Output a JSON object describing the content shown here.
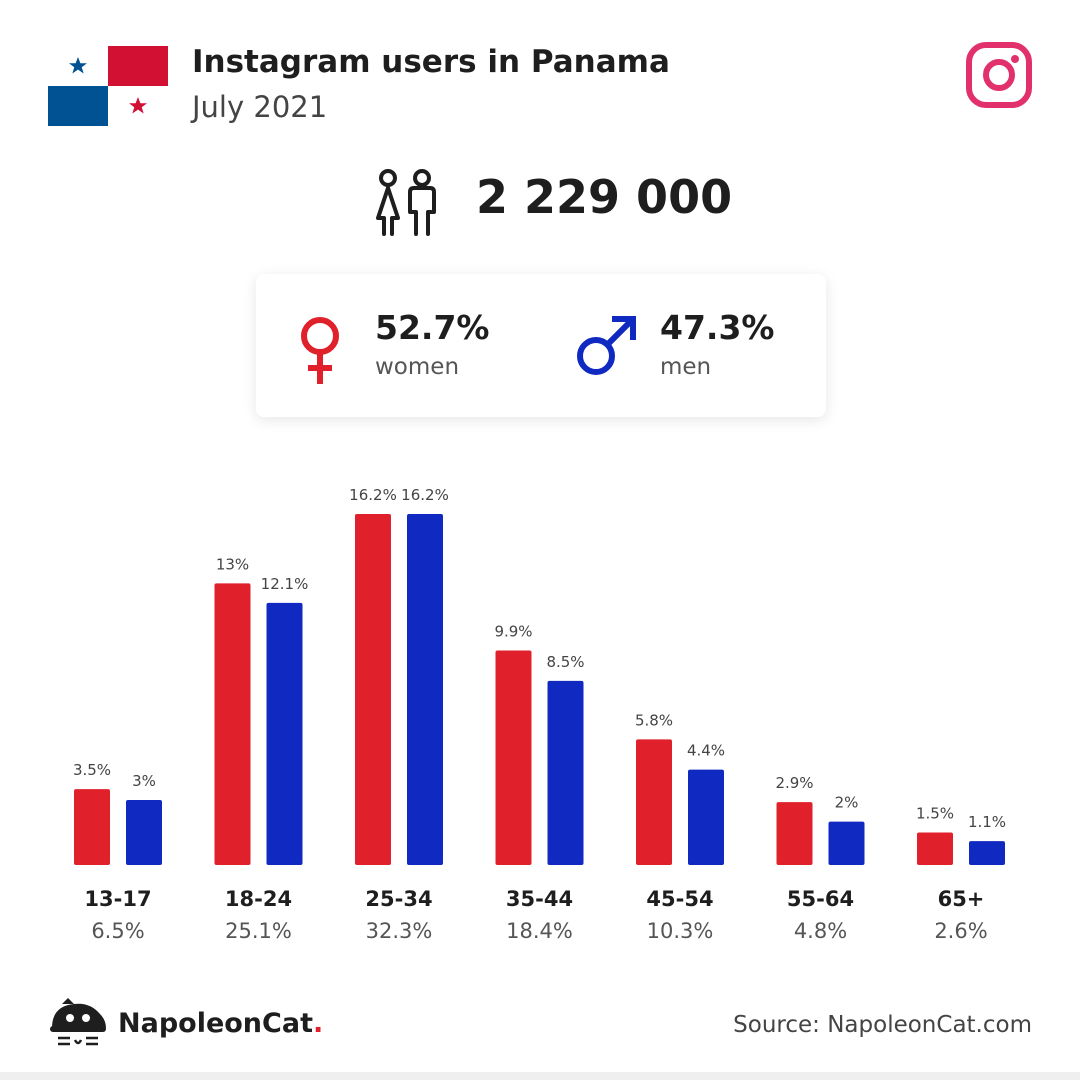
{
  "header": {
    "title": "Instagram users in Panama",
    "subtitle": "July 2021"
  },
  "total_users": "2 229 000",
  "gender": {
    "women": {
      "value": "52.7%",
      "label": "women"
    },
    "men": {
      "value": "47.3%",
      "label": "men"
    }
  },
  "colors": {
    "women": "#e0202a",
    "men": "#1029c0",
    "instagram": "#e1306c"
  },
  "icons": [
    "panama-flag-icon",
    "instagram-icon",
    "users-icon",
    "female-icon",
    "male-icon",
    "napoleoncat-logo-icon"
  ],
  "chart_data": {
    "type": "bar",
    "categories": [
      "13-17",
      "18-24",
      "25-34",
      "35-44",
      "45-54",
      "55-64",
      "65+"
    ],
    "category_totals": [
      "6.5%",
      "25.1%",
      "32.3%",
      "18.4%",
      "10.3%",
      "4.8%",
      "2.6%"
    ],
    "series": [
      {
        "name": "women",
        "values": [
          3.5,
          13,
          16.2,
          9.9,
          5.8,
          2.9,
          1.5
        ],
        "labels": [
          "3.5%",
          "13%",
          "16.2%",
          "9.9%",
          "5.8%",
          "2.9%",
          "1.5%"
        ]
      },
      {
        "name": "men",
        "values": [
          3,
          12.1,
          16.2,
          8.5,
          4.4,
          2,
          1.1
        ],
        "labels": [
          "3%",
          "12.1%",
          "16.2%",
          "8.5%",
          "4.4%",
          "2%",
          "1.1%"
        ]
      }
    ],
    "ylim": [
      0,
      16.2
    ],
    "grid": false
  },
  "footer": {
    "brand": "NapoleonCat",
    "brand_dot": ".",
    "source": "Source: NapoleonCat.com"
  }
}
